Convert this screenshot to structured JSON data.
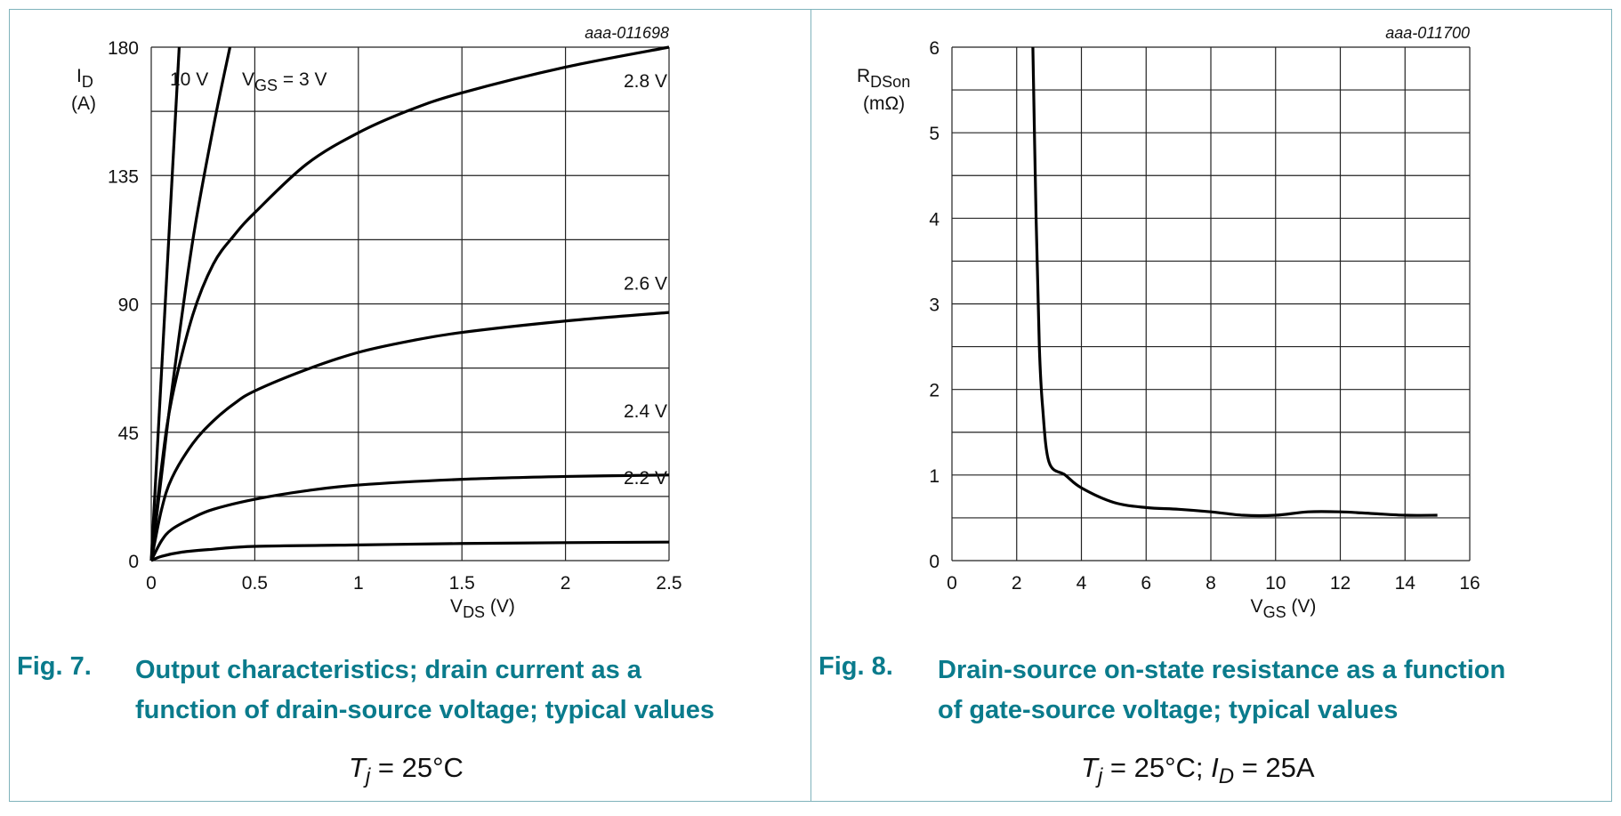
{
  "chart_data": [
    {
      "type": "line",
      "figure_id": "aaa-011698",
      "xlabel": "V",
      "xlabel_sub": "DS",
      "xlabel_unit": " (V)",
      "ylabel": "I",
      "ylabel_sub": "D",
      "ylabel_unit": "(A)",
      "xlim": [
        0,
        2.5
      ],
      "ylim": [
        0,
        180
      ],
      "xticks": [
        "0",
        "0.5",
        "1",
        "1.5",
        "2",
        "2.5"
      ],
      "yticks": [
        "0",
        "45",
        "90",
        "135",
        "180"
      ],
      "grid": true,
      "series": [
        {
          "name": "2.2 V",
          "x": [
            0,
            0.05,
            0.15,
            0.3,
            0.5,
            1,
            1.5,
            2,
            2.5
          ],
          "y": [
            0,
            1.5,
            3,
            4,
            5,
            5.5,
            6,
            6.3,
            6.5
          ]
        },
        {
          "name": "2.4 V",
          "x": [
            0,
            0.05,
            0.1,
            0.2,
            0.3,
            0.5,
            0.75,
            1,
            1.5,
            2,
            2.5
          ],
          "y": [
            0,
            7,
            11,
            15,
            18,
            21.5,
            24.5,
            26.5,
            28.5,
            29.5,
            30
          ]
        },
        {
          "name": "2.6 V",
          "x": [
            0,
            0.05,
            0.1,
            0.2,
            0.3,
            0.4,
            0.5,
            0.75,
            1,
            1.25,
            1.5,
            2,
            2.5
          ],
          "y": [
            0,
            18,
            29,
            41,
            49,
            55,
            59.5,
            67,
            73,
            77,
            80,
            84,
            87
          ]
        },
        {
          "name": "2.8 V",
          "x": [
            0,
            0.05,
            0.1,
            0.2,
            0.3,
            0.4,
            0.5,
            0.75,
            1,
            1.25,
            1.5,
            2,
            2.5
          ],
          "y": [
            0,
            33,
            57,
            86,
            104,
            114,
            122,
            139,
            150,
            158,
            164,
            173,
            180
          ]
        },
        {
          "name": "VGS = 3 V",
          "label_main": "V",
          "label_sub": "GS",
          "label_rest": " = 3 V",
          "x": [
            0,
            0.05,
            0.1,
            0.2,
            0.3,
            0.38
          ],
          "y": [
            0,
            30,
            60,
            112,
            152,
            180
          ]
        },
        {
          "name": "10 V",
          "x": [
            0,
            0.135
          ],
          "y": [
            0,
            180
          ]
        }
      ],
      "caption_number": "Fig. 7.",
      "caption_lines": [
        "Output characteristics; drain current as a",
        "function of drain-source voltage; typical values"
      ],
      "condition": "T j = 25°C",
      "condition_parts": {
        "T": "T",
        "j": "j",
        "rest": " = 25°C"
      }
    },
    {
      "type": "line",
      "figure_id": "aaa-011700",
      "xlabel": "V",
      "xlabel_sub": "GS",
      "xlabel_unit": " (V)",
      "ylabel": "R",
      "ylabel_sub": "DSon",
      "ylabel_unit": "(mΩ)",
      "xlim": [
        0,
        16
      ],
      "ylim": [
        0,
        6
      ],
      "xticks": [
        "0",
        "2",
        "4",
        "6",
        "8",
        "10",
        "12",
        "14",
        "16"
      ],
      "yticks": [
        "0",
        "1",
        "2",
        "3",
        "4",
        "5",
        "6"
      ],
      "grid": true,
      "series": [
        {
          "name": "RDSon",
          "x": [
            2.5,
            2.6,
            2.7,
            2.8,
            3,
            3.5,
            4,
            5,
            6,
            7,
            8,
            9,
            10,
            11,
            12,
            13,
            14,
            15
          ],
          "y": [
            6,
            4,
            2.5,
            1.8,
            1.15,
            1.0,
            0.85,
            0.68,
            0.62,
            0.6,
            0.57,
            0.53,
            0.53,
            0.57,
            0.57,
            0.55,
            0.53,
            0.53
          ]
        }
      ],
      "caption_number": "Fig. 8.",
      "caption_lines": [
        "Drain-source on-state resistance as a function",
        "of gate-source voltage; typical values"
      ],
      "condition_parts": {
        "T": "T",
        "j": "j",
        "rest": " = 25°C;  ",
        "I": "I",
        "D": "D",
        "rest2": " = 25A"
      }
    }
  ]
}
